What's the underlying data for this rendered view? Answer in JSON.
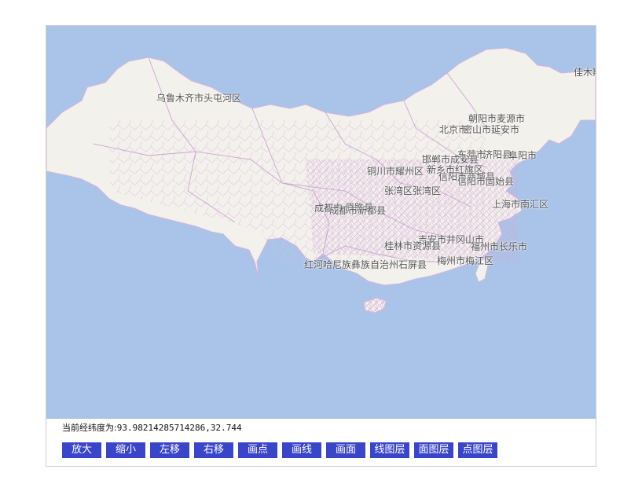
{
  "map": {
    "labels": [
      "乌鲁木齐市头屯河区",
      "朝阳市麦源市",
      "北京市",
      "密山市延安市",
      "东营市",
      "济阳县",
      "阜阳市",
      "邯郸市成安县",
      "铜川市耀州区",
      "新乡市红旗区",
      "信阳市商城县",
      "信阳市固始县",
      "张湾区张湾区",
      "成都市",
      "武胜县",
      "成都市新都县",
      "上海市南汇区",
      "吉安市井冈山市",
      "桂林市资源县",
      "福州市长乐市",
      "梅州市梅江区",
      "红河哈尼族彝族自治州石屏县",
      "佳木斯"
    ]
  },
  "coords": {
    "label": "当前经纬度为:",
    "value": "93.98214285714286,32.744"
  },
  "toolbar": {
    "buttons": [
      "放大",
      "缩小",
      "左移",
      "右移",
      "画点",
      "画线",
      "画面",
      "线图层",
      "面图层",
      "点图层"
    ]
  },
  "colors": {
    "sea": "#a9c4e8",
    "land": "#f3f1ec",
    "border": "#d7b4dc",
    "button": "#3a46c9"
  }
}
